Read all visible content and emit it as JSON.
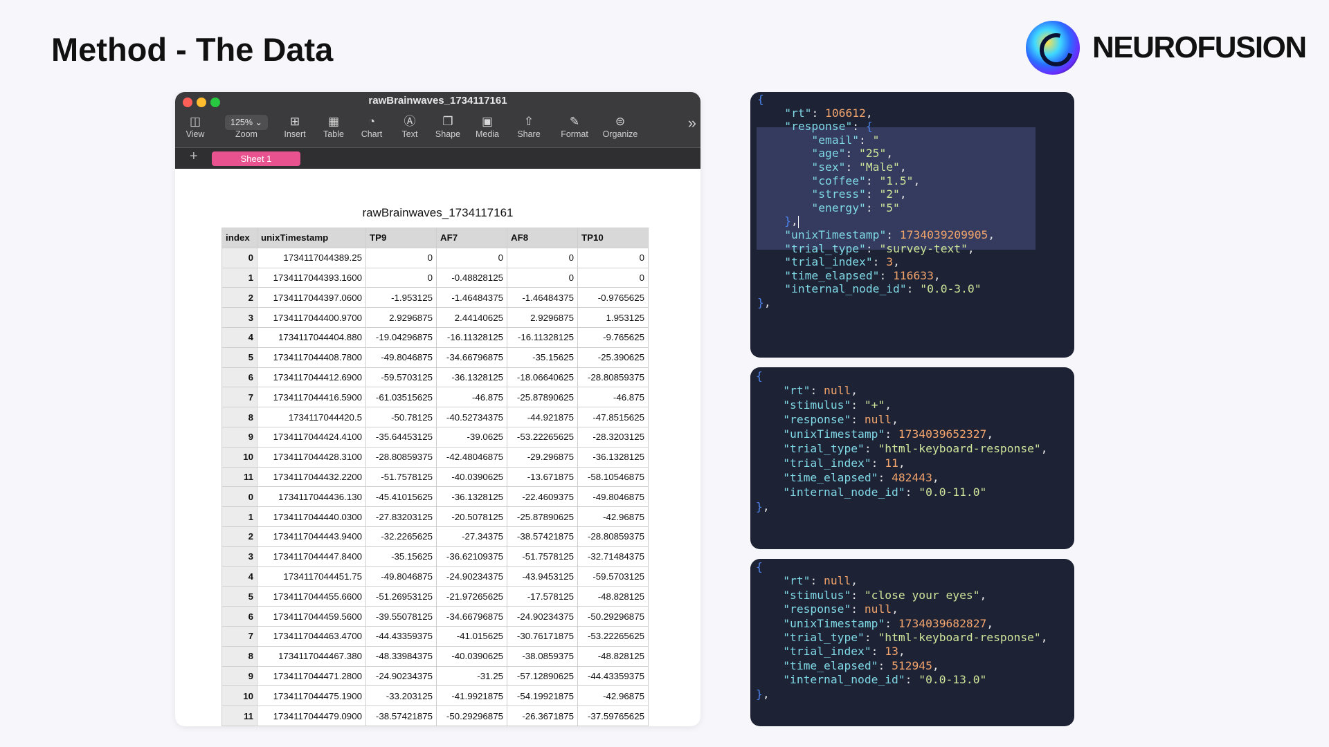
{
  "slide": {
    "title": "Method - The Data"
  },
  "brand": {
    "name": "NEUROFUSION"
  },
  "window": {
    "title": "rawBrainwaves_1734117161",
    "zoom_value": "125%",
    "toolbar": {
      "view": "View",
      "zoom": "Zoom",
      "insert": "Insert",
      "table": "Table",
      "chart": "Chart",
      "text": "Text",
      "shape": "Shape",
      "media": "Media",
      "share": "Share",
      "format": "Format",
      "organize": "Organize"
    },
    "sheet_tab": "Sheet 1",
    "add_sheet": "+",
    "more": "»"
  },
  "spreadsheet": {
    "title": "rawBrainwaves_1734117161",
    "columns": [
      "index",
      "unixTimestamp",
      "TP9",
      "AF7",
      "AF8",
      "TP10"
    ],
    "rows": [
      [
        "0",
        "1734117044389.25",
        "0",
        "0",
        "0",
        "0"
      ],
      [
        "1",
        "1734117044393.1600",
        "0",
        "-0.48828125",
        "0",
        "0"
      ],
      [
        "2",
        "1734117044397.0600",
        "-1.953125",
        "-1.46484375",
        "-1.46484375",
        "-0.9765625"
      ],
      [
        "3",
        "1734117044400.9700",
        "2.9296875",
        "2.44140625",
        "2.9296875",
        "1.953125"
      ],
      [
        "4",
        "1734117044404.880",
        "-19.04296875",
        "-16.11328125",
        "-16.11328125",
        "-9.765625"
      ],
      [
        "5",
        "1734117044408.7800",
        "-49.8046875",
        "-34.66796875",
        "-35.15625",
        "-25.390625"
      ],
      [
        "6",
        "1734117044412.6900",
        "-59.5703125",
        "-36.1328125",
        "-18.06640625",
        "-28.80859375"
      ],
      [
        "7",
        "1734117044416.5900",
        "-61.03515625",
        "-46.875",
        "-25.87890625",
        "-46.875"
      ],
      [
        "8",
        "1734117044420.5",
        "-50.78125",
        "-40.52734375",
        "-44.921875",
        "-47.8515625"
      ],
      [
        "9",
        "1734117044424.4100",
        "-35.64453125",
        "-39.0625",
        "-53.22265625",
        "-28.3203125"
      ],
      [
        "10",
        "1734117044428.3100",
        "-28.80859375",
        "-42.48046875",
        "-29.296875",
        "-36.1328125"
      ],
      [
        "11",
        "1734117044432.2200",
        "-51.7578125",
        "-40.0390625",
        "-13.671875",
        "-58.10546875"
      ],
      [
        "0",
        "1734117044436.130",
        "-45.41015625",
        "-36.1328125",
        "-22.4609375",
        "-49.8046875"
      ],
      [
        "1",
        "1734117044440.0300",
        "-27.83203125",
        "-20.5078125",
        "-25.87890625",
        "-42.96875"
      ],
      [
        "2",
        "1734117044443.9400",
        "-32.2265625",
        "-27.34375",
        "-38.57421875",
        "-28.80859375"
      ],
      [
        "3",
        "1734117044447.8400",
        "-35.15625",
        "-36.62109375",
        "-51.7578125",
        "-32.71484375"
      ],
      [
        "4",
        "1734117044451.75",
        "-49.8046875",
        "-24.90234375",
        "-43.9453125",
        "-59.5703125"
      ],
      [
        "5",
        "1734117044455.6600",
        "-51.26953125",
        "-21.97265625",
        "-17.578125",
        "-48.828125"
      ],
      [
        "6",
        "1734117044459.5600",
        "-39.55078125",
        "-34.66796875",
        "-24.90234375",
        "-50.29296875"
      ],
      [
        "7",
        "1734117044463.4700",
        "-44.43359375",
        "-41.015625",
        "-30.76171875",
        "-53.22265625"
      ],
      [
        "8",
        "1734117044467.380",
        "-48.33984375",
        "-40.0390625",
        "-38.0859375",
        "-48.828125"
      ],
      [
        "9",
        "1734117044471.2800",
        "-24.90234375",
        "-31.25",
        "-57.12890625",
        "-44.43359375"
      ],
      [
        "10",
        "1734117044475.1900",
        "-33.203125",
        "-41.9921875",
        "-54.19921875",
        "-42.96875"
      ],
      [
        "11",
        "1734117044479.0900",
        "-38.57421875",
        "-50.29296875",
        "-26.3671875",
        "-37.59765625"
      ]
    ]
  },
  "code_panels": [
    {
      "lines": [
        [
          [
            "b",
            "{"
          ]
        ],
        [
          [
            "p",
            "    "
          ],
          [
            "k",
            "\"rt\""
          ],
          [
            "p",
            ": "
          ],
          [
            "n",
            "106612"
          ],
          [
            "p",
            ","
          ]
        ],
        [
          [
            "p",
            "    "
          ],
          [
            "k",
            "\"response\""
          ],
          [
            "p",
            ": "
          ],
          [
            "b",
            "{"
          ]
        ],
        [
          [
            "p",
            "        "
          ],
          [
            "k",
            "\"email\""
          ],
          [
            "p",
            ": "
          ],
          [
            "s",
            "\""
          ]
        ],
        [
          [
            "p",
            "        "
          ],
          [
            "k",
            "\"age\""
          ],
          [
            "p",
            ": "
          ],
          [
            "s",
            "\"25\""
          ],
          [
            "p",
            ","
          ]
        ],
        [
          [
            "p",
            "        "
          ],
          [
            "k",
            "\"sex\""
          ],
          [
            "p",
            ": "
          ],
          [
            "s",
            "\"Male\""
          ],
          [
            "p",
            ","
          ]
        ],
        [
          [
            "p",
            "        "
          ],
          [
            "k",
            "\"coffee\""
          ],
          [
            "p",
            ": "
          ],
          [
            "s",
            "\"1.5\""
          ],
          [
            "p",
            ","
          ]
        ],
        [
          [
            "p",
            "        "
          ],
          [
            "k",
            "\"stress\""
          ],
          [
            "p",
            ": "
          ],
          [
            "s",
            "\"2\""
          ],
          [
            "p",
            ","
          ]
        ],
        [
          [
            "p",
            "        "
          ],
          [
            "k",
            "\"energy\""
          ],
          [
            "p",
            ": "
          ],
          [
            "s",
            "\"5\""
          ]
        ],
        [
          [
            "p",
            "    "
          ],
          [
            "b",
            "}"
          ],
          [
            "p",
            ","
          ]
        ],
        [
          [
            "p",
            "    "
          ],
          [
            "k",
            "\"unixTimestamp\""
          ],
          [
            "p",
            ": "
          ],
          [
            "n",
            "1734039209905"
          ],
          [
            "p",
            ","
          ]
        ],
        [
          [
            "p",
            "    "
          ],
          [
            "k",
            "\"trial_type\""
          ],
          [
            "p",
            ": "
          ],
          [
            "s",
            "\"survey-text\""
          ],
          [
            "p",
            ","
          ]
        ],
        [
          [
            "p",
            "    "
          ],
          [
            "k",
            "\"trial_index\""
          ],
          [
            "p",
            ": "
          ],
          [
            "n",
            "3"
          ],
          [
            "p",
            ","
          ]
        ],
        [
          [
            "p",
            "    "
          ],
          [
            "k",
            "\"time_elapsed\""
          ],
          [
            "p",
            ": "
          ],
          [
            "n",
            "116633"
          ],
          [
            "p",
            ","
          ]
        ],
        [
          [
            "p",
            "    "
          ],
          [
            "k",
            "\"internal_node_id\""
          ],
          [
            "p",
            ": "
          ],
          [
            "s",
            "\"0.0-3.0\""
          ]
        ],
        [
          [
            "b",
            "}"
          ],
          [
            "p",
            ","
          ]
        ]
      ]
    },
    {
      "lines": [
        [
          [
            "b",
            "{"
          ]
        ],
        [
          [
            "p",
            "    "
          ],
          [
            "k",
            "\"rt\""
          ],
          [
            "p",
            ": "
          ],
          [
            "n",
            "null"
          ],
          [
            "p",
            ","
          ]
        ],
        [
          [
            "p",
            "    "
          ],
          [
            "k",
            "\"stimulus\""
          ],
          [
            "p",
            ": "
          ],
          [
            "s",
            "\"+\""
          ],
          [
            "p",
            ","
          ]
        ],
        [
          [
            "p",
            "    "
          ],
          [
            "k",
            "\"response\""
          ],
          [
            "p",
            ": "
          ],
          [
            "n",
            "null"
          ],
          [
            "p",
            ","
          ]
        ],
        [
          [
            "p",
            "    "
          ],
          [
            "k",
            "\"unixTimestamp\""
          ],
          [
            "p",
            ": "
          ],
          [
            "n",
            "1734039652327"
          ],
          [
            "p",
            ","
          ]
        ],
        [
          [
            "p",
            "    "
          ],
          [
            "k",
            "\"trial_type\""
          ],
          [
            "p",
            ": "
          ],
          [
            "s",
            "\"html-keyboard-response\""
          ],
          [
            "p",
            ","
          ]
        ],
        [
          [
            "p",
            "    "
          ],
          [
            "k",
            "\"trial_index\""
          ],
          [
            "p",
            ": "
          ],
          [
            "n",
            "11"
          ],
          [
            "p",
            ","
          ]
        ],
        [
          [
            "p",
            "    "
          ],
          [
            "k",
            "\"time_elapsed\""
          ],
          [
            "p",
            ": "
          ],
          [
            "n",
            "482443"
          ],
          [
            "p",
            ","
          ]
        ],
        [
          [
            "p",
            "    "
          ],
          [
            "k",
            "\"internal_node_id\""
          ],
          [
            "p",
            ": "
          ],
          [
            "s",
            "\"0.0-11.0\""
          ]
        ],
        [
          [
            "b",
            "}"
          ],
          [
            "p",
            ","
          ]
        ]
      ]
    },
    {
      "lines": [
        [
          [
            "b",
            "{"
          ]
        ],
        [
          [
            "p",
            "    "
          ],
          [
            "k",
            "\"rt\""
          ],
          [
            "p",
            ": "
          ],
          [
            "n",
            "null"
          ],
          [
            "p",
            ","
          ]
        ],
        [
          [
            "p",
            "    "
          ],
          [
            "k",
            "\"stimulus\""
          ],
          [
            "p",
            ": "
          ],
          [
            "s",
            "\"close your eyes\""
          ],
          [
            "p",
            ","
          ]
        ],
        [
          [
            "p",
            "    "
          ],
          [
            "k",
            "\"response\""
          ],
          [
            "p",
            ": "
          ],
          [
            "n",
            "null"
          ],
          [
            "p",
            ","
          ]
        ],
        [
          [
            "p",
            "    "
          ],
          [
            "k",
            "\"unixTimestamp\""
          ],
          [
            "p",
            ": "
          ],
          [
            "n",
            "1734039682827"
          ],
          [
            "p",
            ","
          ]
        ],
        [
          [
            "p",
            "    "
          ],
          [
            "k",
            "\"trial_type\""
          ],
          [
            "p",
            ": "
          ],
          [
            "s",
            "\"html-keyboard-response\""
          ],
          [
            "p",
            ","
          ]
        ],
        [
          [
            "p",
            "    "
          ],
          [
            "k",
            "\"trial_index\""
          ],
          [
            "p",
            ": "
          ],
          [
            "n",
            "13"
          ],
          [
            "p",
            ","
          ]
        ],
        [
          [
            "p",
            "    "
          ],
          [
            "k",
            "\"time_elapsed\""
          ],
          [
            "p",
            ": "
          ],
          [
            "n",
            "512945"
          ],
          [
            "p",
            ","
          ]
        ],
        [
          [
            "p",
            "    "
          ],
          [
            "k",
            "\"internal_node_id\""
          ],
          [
            "p",
            ": "
          ],
          [
            "s",
            "\"0.0-13.0\""
          ]
        ],
        [
          [
            "b",
            "}"
          ],
          [
            "p",
            ","
          ]
        ]
      ]
    }
  ]
}
